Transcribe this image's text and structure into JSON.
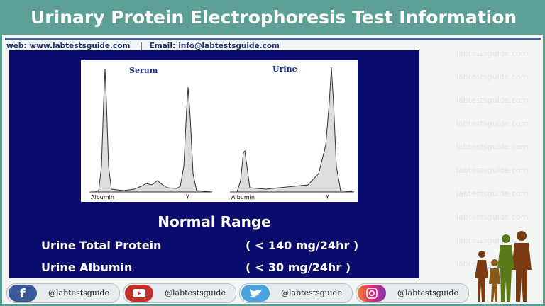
{
  "header": {
    "title": "Urinary Protein Electrophoresis Test Information"
  },
  "contact": {
    "web_label": "web:",
    "web": "www.labtestsguide.com",
    "separator": "|",
    "email_label": "Email:",
    "email": "info@labtestsguide.com"
  },
  "watermark": "labtestsguide.com",
  "figure": {
    "panels": [
      {
        "label": "Serum",
        "peak_labels": [
          "Albumin",
          "γ"
        ]
      },
      {
        "label": "Urine",
        "peak_labels": [
          "Albumin",
          "γ"
        ]
      }
    ]
  },
  "normal_range": {
    "title": "Normal Range",
    "rows": [
      [
        "Urine Total Protein",
        "( < 140 mg/24hr )"
      ],
      [
        "Urine Albumin",
        "( < 30 mg/24hr )"
      ]
    ]
  },
  "social": [
    "@labtestsguide",
    "@labtestsguide",
    "@labtestsguide",
    "@labtestsguide"
  ]
}
